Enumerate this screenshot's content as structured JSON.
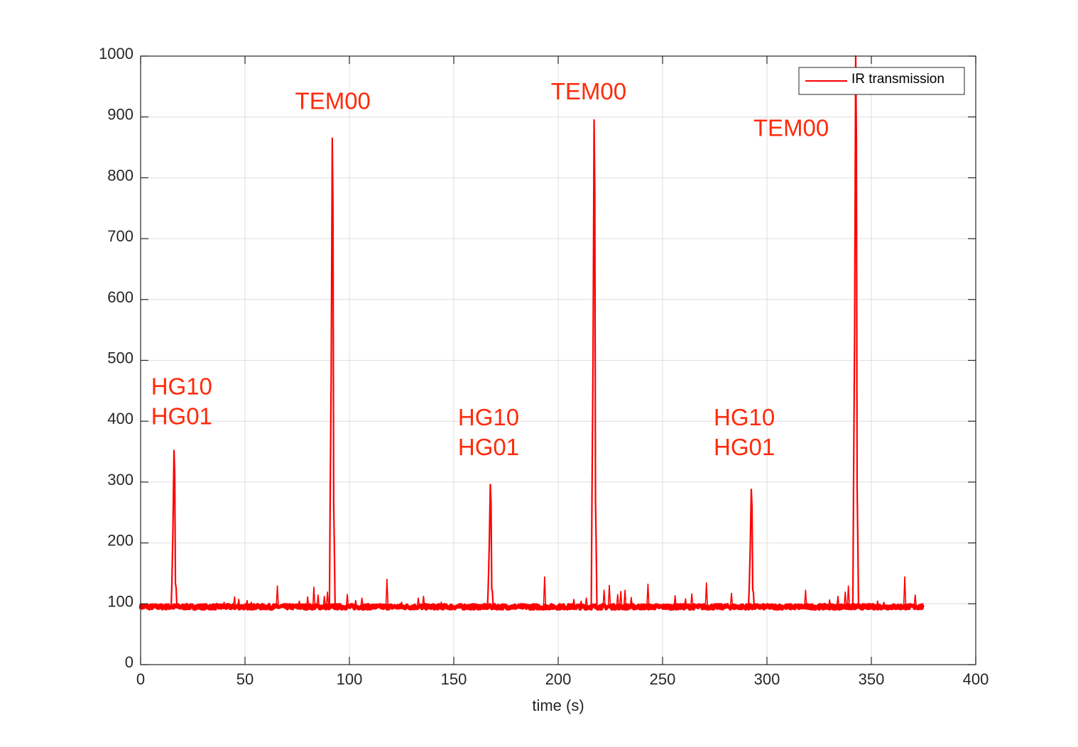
{
  "chart_data": {
    "type": "line",
    "title": "",
    "xlabel": "time (s)",
    "ylabel": "",
    "xlim": [
      0,
      400
    ],
    "ylim": [
      0,
      1000
    ],
    "xticks": [
      0,
      50,
      100,
      150,
      200,
      250,
      300,
      350,
      400
    ],
    "yticks": [
      0,
      100,
      200,
      300,
      400,
      500,
      600,
      700,
      800,
      900,
      1000
    ],
    "grid": true,
    "legend_position": "top-right",
    "baseline": 95,
    "series": [
      {
        "name": "IR transmission",
        "color": "#ff0000",
        "x_range": [
          0,
          375
        ],
        "peaks": [
          {
            "x": 16,
            "y": 352
          },
          {
            "x": 91.8,
            "y": 865
          },
          {
            "x": 167.5,
            "y": 296
          },
          {
            "x": 217.2,
            "y": 895
          },
          {
            "x": 292.5,
            "y": 288
          },
          {
            "x": 342.5,
            "y": 1000
          }
        ],
        "minor_peaks": [
          {
            "x": 40,
            "y": 103
          },
          {
            "x": 45,
            "y": 112
          },
          {
            "x": 47,
            "y": 108
          },
          {
            "x": 51,
            "y": 106
          },
          {
            "x": 53,
            "y": 103
          },
          {
            "x": 65.5,
            "y": 130
          },
          {
            "x": 76,
            "y": 105
          },
          {
            "x": 80,
            "y": 112
          },
          {
            "x": 83,
            "y": 128
          },
          {
            "x": 85,
            "y": 115
          },
          {
            "x": 88,
            "y": 113
          },
          {
            "x": 89.5,
            "y": 120
          },
          {
            "x": 99,
            "y": 116
          },
          {
            "x": 103,
            "y": 106
          },
          {
            "x": 106,
            "y": 110
          },
          {
            "x": 118,
            "y": 141
          },
          {
            "x": 125,
            "y": 103
          },
          {
            "x": 133,
            "y": 110
          },
          {
            "x": 135.5,
            "y": 113
          },
          {
            "x": 144,
            "y": 103
          },
          {
            "x": 193.5,
            "y": 145
          },
          {
            "x": 207.5,
            "y": 108
          },
          {
            "x": 211,
            "y": 105
          },
          {
            "x": 213.5,
            "y": 110
          },
          {
            "x": 222,
            "y": 123
          },
          {
            "x": 224.5,
            "y": 131
          },
          {
            "x": 228.5,
            "y": 116
          },
          {
            "x": 230,
            "y": 121
          },
          {
            "x": 232,
            "y": 123
          },
          {
            "x": 235,
            "y": 111
          },
          {
            "x": 243,
            "y": 133
          },
          {
            "x": 256,
            "y": 114
          },
          {
            "x": 261,
            "y": 109
          },
          {
            "x": 264,
            "y": 117
          },
          {
            "x": 271,
            "y": 135
          },
          {
            "x": 283,
            "y": 118
          },
          {
            "x": 318.5,
            "y": 123
          },
          {
            "x": 330,
            "y": 107
          },
          {
            "x": 334,
            "y": 113
          },
          {
            "x": 337.5,
            "y": 120
          },
          {
            "x": 339,
            "y": 130
          },
          {
            "x": 353,
            "y": 105
          },
          {
            "x": 356,
            "y": 103
          },
          {
            "x": 366,
            "y": 145
          },
          {
            "x": 371,
            "y": 115
          }
        ]
      }
    ],
    "annotations": [
      {
        "text": "HG10",
        "x": 5,
        "y": 444,
        "color": "#ff2a0a"
      },
      {
        "text": "HG01",
        "x": 5,
        "y": 395,
        "color": "#ff2a0a"
      },
      {
        "text": "TEM00",
        "x": 74,
        "y": 913,
        "color": "#ff2a0a"
      },
      {
        "text": "HG10",
        "x": 152,
        "y": 393,
        "color": "#ff2a0a"
      },
      {
        "text": "HG01",
        "x": 152,
        "y": 344,
        "color": "#ff2a0a"
      },
      {
        "text": "TEM00",
        "x": 196.5,
        "y": 929,
        "color": "#ff2a0a"
      },
      {
        "text": "HG10",
        "x": 274.5,
        "y": 393,
        "color": "#ff2a0a"
      },
      {
        "text": "HG01",
        "x": 274.5,
        "y": 344,
        "color": "#ff2a0a"
      },
      {
        "text": "TEM00",
        "x": 293.5,
        "y": 869,
        "color": "#ff2a0a"
      }
    ]
  }
}
